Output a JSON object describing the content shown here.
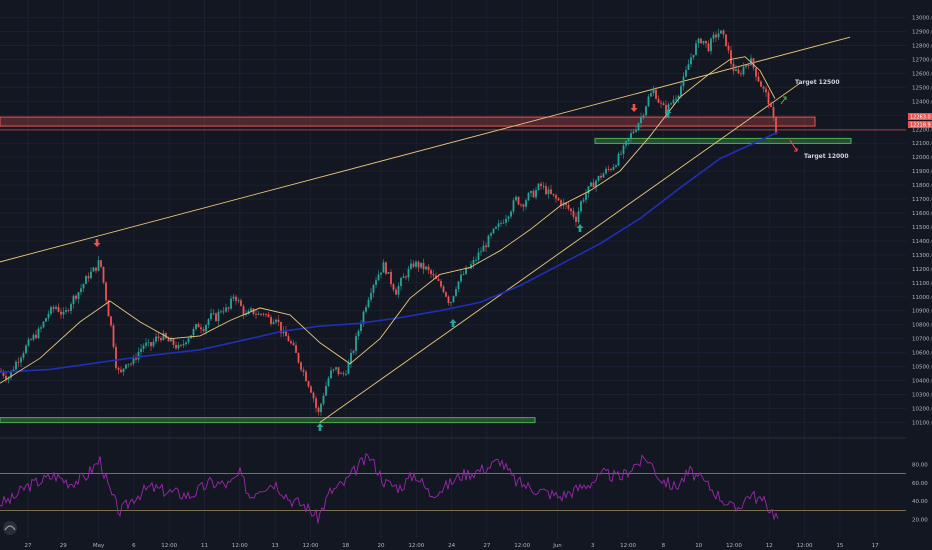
{
  "chart_data": {
    "type": "candlestick",
    "price_axis": {
      "ticks": [
        "13000.0",
        "12900.0",
        "12800.0",
        "12700.0",
        "12600.0",
        "12500.0",
        "12400.0",
        "12300.0",
        "12200.0",
        "12100.0",
        "12000.0",
        "11900.0",
        "11800.0",
        "11700.0",
        "11600.0",
        "11500.0",
        "11400.0",
        "11300.0",
        "11200.0",
        "11100.0",
        "11000.0",
        "10900.0",
        "10800.0",
        "10700.0",
        "10600.0",
        "10500.0",
        "10400.0",
        "10300.0",
        "10200.0",
        "10100.0"
      ],
      "range": [
        10060,
        13040
      ],
      "current_price_label": "12263.0",
      "current_price_label_2": "12218.9"
    },
    "time_axis": {
      "labels": [
        "27",
        "29",
        "May",
        "6",
        "12:00",
        "11",
        "12:00",
        "13",
        "12:00",
        "18",
        "20",
        "12:00",
        "24",
        "27",
        "12:00",
        "Jun",
        "3",
        "12:00",
        "8",
        "10",
        "12:00",
        "12",
        "12:00",
        "15",
        "17"
      ]
    },
    "annotations": {
      "target_up": "Target 12500",
      "target_down": "Target 12000"
    },
    "levels": {
      "resistance": [
        12280,
        12230
      ],
      "support_high": 12120,
      "support_low": 10120
    },
    "rsi": {
      "axis_ticks": [
        "80.00",
        "60.00",
        "40.00",
        "20.00"
      ],
      "levels": [
        70,
        30
      ],
      "color": "#9c27b0"
    },
    "colors": {
      "up": "#26a69a",
      "down": "#ef5350",
      "ma_long": "#1f2fb8",
      "ma_short": "#e8c77a",
      "trendline": "#e8c77a",
      "resistance": "#ef5350",
      "support": "#4caf50",
      "arrow_up": "#26a69a",
      "arrow_down": "#ef5350",
      "background": "#131722"
    },
    "close_path": [
      [
        0,
        10470
      ],
      [
        8,
        10420
      ],
      [
        16,
        10530
      ],
      [
        24,
        10620
      ],
      [
        32,
        10700
      ],
      [
        40,
        10760
      ],
      [
        48,
        10880
      ],
      [
        56,
        10930
      ],
      [
        64,
        10860
      ],
      [
        72,
        10980
      ],
      [
        80,
        11050
      ],
      [
        88,
        11150
      ],
      [
        95,
        11200
      ],
      [
        100,
        11260
      ],
      [
        104,
        11080
      ],
      [
        108,
        10900
      ],
      [
        112,
        10750
      ],
      [
        116,
        10520
      ],
      [
        120,
        10430
      ],
      [
        126,
        10540
      ],
      [
        132,
        10520
      ],
      [
        138,
        10600
      ],
      [
        144,
        10660
      ],
      [
        150,
        10640
      ],
      [
        156,
        10700
      ],
      [
        162,
        10720
      ],
      [
        168,
        10680
      ],
      [
        174,
        10660
      ],
      [
        180,
        10620
      ],
      [
        186,
        10700
      ],
      [
        192,
        10740
      ],
      [
        198,
        10800
      ],
      [
        204,
        10780
      ],
      [
        210,
        10860
      ],
      [
        216,
        10850
      ],
      [
        222,
        10920
      ],
      [
        228,
        10900
      ],
      [
        234,
        11020
      ],
      [
        240,
        10940
      ],
      [
        246,
        10860
      ],
      [
        252,
        10900
      ],
      [
        258,
        10870
      ],
      [
        264,
        10890
      ],
      [
        270,
        10830
      ],
      [
        276,
        10860
      ],
      [
        282,
        10740
      ],
      [
        288,
        10700
      ],
      [
        294,
        10620
      ],
      [
        300,
        10520
      ],
      [
        306,
        10420
      ],
      [
        312,
        10320
      ],
      [
        318,
        10150
      ],
      [
        324,
        10320
      ],
      [
        330,
        10450
      ],
      [
        336,
        10480
      ],
      [
        342,
        10430
      ],
      [
        348,
        10500
      ],
      [
        354,
        10640
      ],
      [
        360,
        10800
      ],
      [
        366,
        10950
      ],
      [
        372,
        11080
      ],
      [
        378,
        11160
      ],
      [
        384,
        11230
      ],
      [
        390,
        11120
      ],
      [
        396,
        11040
      ],
      [
        402,
        11120
      ],
      [
        408,
        11180
      ],
      [
        414,
        11240
      ],
      [
        420,
        11220
      ],
      [
        426,
        11200
      ],
      [
        432,
        11150
      ],
      [
        438,
        11100
      ],
      [
        444,
        11050
      ],
      [
        450,
        10950
      ],
      [
        456,
        11080
      ],
      [
        462,
        11150
      ],
      [
        468,
        11200
      ],
      [
        474,
        11250
      ],
      [
        480,
        11320
      ],
      [
        486,
        11380
      ],
      [
        492,
        11450
      ],
      [
        498,
        11500
      ],
      [
        504,
        11560
      ],
      [
        510,
        11620
      ],
      [
        516,
        11700
      ],
      [
        522,
        11660
      ],
      [
        528,
        11720
      ],
      [
        534,
        11740
      ],
      [
        540,
        11800
      ],
      [
        546,
        11760
      ],
      [
        552,
        11720
      ],
      [
        558,
        11690
      ],
      [
        564,
        11660
      ],
      [
        570,
        11620
      ],
      [
        576,
        11560
      ],
      [
        582,
        11700
      ],
      [
        588,
        11760
      ],
      [
        594,
        11820
      ],
      [
        600,
        11860
      ],
      [
        606,
        11900
      ],
      [
        612,
        11930
      ],
      [
        618,
        11990
      ],
      [
        624,
        12060
      ],
      [
        630,
        12150
      ],
      [
        636,
        12220
      ],
      [
        642,
        12300
      ],
      [
        648,
        12420
      ],
      [
        654,
        12480
      ],
      [
        660,
        12380
      ],
      [
        666,
        12330
      ],
      [
        672,
        12400
      ],
      [
        678,
        12460
      ],
      [
        684,
        12560
      ],
      [
        690,
        12700
      ],
      [
        696,
        12800
      ],
      [
        702,
        12850
      ],
      [
        708,
        12780
      ],
      [
        714,
        12860
      ],
      [
        720,
        12900
      ],
      [
        726,
        12820
      ],
      [
        732,
        12650
      ],
      [
        738,
        12580
      ],
      [
        744,
        12650
      ],
      [
        750,
        12700
      ],
      [
        756,
        12600
      ],
      [
        762,
        12500
      ],
      [
        768,
        12420
      ],
      [
        772,
        12300
      ],
      [
        776,
        12200
      ]
    ],
    "ma_short_path": [
      [
        0,
        10380
      ],
      [
        40,
        10560
      ],
      [
        80,
        10820
      ],
      [
        110,
        10970
      ],
      [
        140,
        10820
      ],
      [
        170,
        10700
      ],
      [
        200,
        10720
      ],
      [
        230,
        10830
      ],
      [
        260,
        10920
      ],
      [
        290,
        10870
      ],
      [
        320,
        10670
      ],
      [
        350,
        10520
      ],
      [
        380,
        10700
      ],
      [
        410,
        10990
      ],
      [
        440,
        11160
      ],
      [
        470,
        11210
      ],
      [
        500,
        11330
      ],
      [
        530,
        11480
      ],
      [
        560,
        11650
      ],
      [
        590,
        11760
      ],
      [
        620,
        11900
      ],
      [
        650,
        12150
      ],
      [
        680,
        12430
      ],
      [
        710,
        12600
      ],
      [
        730,
        12700
      ],
      [
        745,
        12720
      ],
      [
        760,
        12620
      ],
      [
        775,
        12420
      ]
    ],
    "ma_long_path": [
      [
        0,
        10460
      ],
      [
        50,
        10480
      ],
      [
        100,
        10530
      ],
      [
        150,
        10580
      ],
      [
        200,
        10620
      ],
      [
        250,
        10700
      ],
      [
        280,
        10750
      ],
      [
        320,
        10790
      ],
      [
        360,
        10810
      ],
      [
        400,
        10850
      ],
      [
        440,
        10900
      ],
      [
        480,
        10960
      ],
      [
        520,
        11080
      ],
      [
        560,
        11230
      ],
      [
        600,
        11380
      ],
      [
        640,
        11560
      ],
      [
        680,
        11780
      ],
      [
        720,
        11990
      ],
      [
        760,
        12120
      ],
      [
        778,
        12180
      ]
    ],
    "trendlines": [
      {
        "from": [
          0,
          11250
        ],
        "to": [
          850,
          12860
        ]
      },
      {
        "from": [
          320,
          10100
        ],
        "to": [
          800,
          12530
        ]
      }
    ],
    "rsi_path": [
      [
        0,
        38
      ],
      [
        12,
        42
      ],
      [
        25,
        55
      ],
      [
        40,
        62
      ],
      [
        55,
        68
      ],
      [
        70,
        60
      ],
      [
        85,
        66
      ],
      [
        100,
        85
      ],
      [
        110,
        50
      ],
      [
        120,
        28
      ],
      [
        135,
        45
      ],
      [
        150,
        55
      ],
      [
        170,
        50
      ],
      [
        190,
        46
      ],
      [
        210,
        60
      ],
      [
        230,
        58
      ],
      [
        240,
        70
      ],
      [
        250,
        45
      ],
      [
        260,
        55
      ],
      [
        275,
        60
      ],
      [
        290,
        42
      ],
      [
        305,
        35
      ],
      [
        318,
        22
      ],
      [
        330,
        50
      ],
      [
        345,
        60
      ],
      [
        360,
        80
      ],
      [
        370,
        88
      ],
      [
        385,
        60
      ],
      [
        400,
        55
      ],
      [
        415,
        70
      ],
      [
        430,
        48
      ],
      [
        445,
        55
      ],
      [
        460,
        68
      ],
      [
        475,
        72
      ],
      [
        490,
        78
      ],
      [
        500,
        85
      ],
      [
        515,
        62
      ],
      [
        530,
        55
      ],
      [
        545,
        50
      ],
      [
        560,
        45
      ],
      [
        575,
        52
      ],
      [
        590,
        60
      ],
      [
        605,
        70
      ],
      [
        620,
        65
      ],
      [
        635,
        80
      ],
      [
        648,
        86
      ],
      [
        660,
        65
      ],
      [
        675,
        55
      ],
      [
        690,
        72
      ],
      [
        705,
        60
      ],
      [
        720,
        45
      ],
      [
        735,
        30
      ],
      [
        750,
        48
      ],
      [
        765,
        38
      ],
      [
        778,
        22
      ]
    ]
  }
}
